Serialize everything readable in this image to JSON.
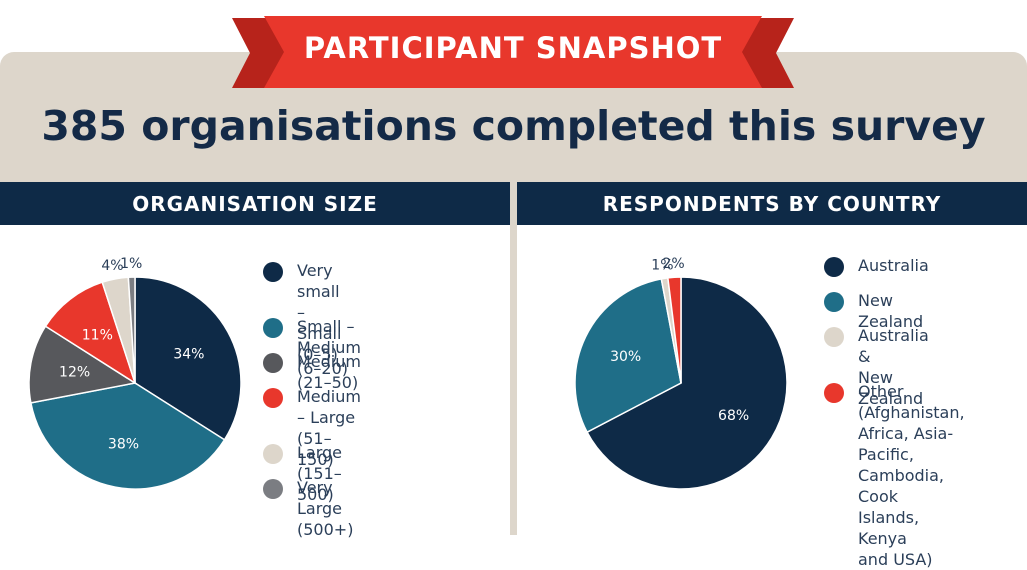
{
  "header": {
    "ribbon_title": "PARTICIPANT SNAPSHOT",
    "headline": "385 organisations completed this survey"
  },
  "colors": {
    "navy": "#0e2a47",
    "teal": "#1f6e88",
    "grey": "#57585c",
    "red": "#e8372c",
    "beige": "#ddd6cb",
    "light_grey": "#7b7d82"
  },
  "chart_data": [
    {
      "type": "pie",
      "title": "ORGANISATION SIZE",
      "slices": [
        {
          "label": "Very small – Small\n(0–5)",
          "value": 34,
          "display": "34%",
          "color": "#0e2a47"
        },
        {
          "label": "Small – Medium (6–20)",
          "value": 38,
          "display": "38%",
          "color": "#1f6e88"
        },
        {
          "label": "Medium (21–50)",
          "value": 12,
          "display": "12%",
          "color": "#57585c"
        },
        {
          "label": "Medium – Large\n(51–150)",
          "value": 11,
          "display": "11%",
          "color": "#e8372c"
        },
        {
          "label": "Large (151–500)",
          "value": 4,
          "display": "4%",
          "color": "#ddd6cb"
        },
        {
          "label": "Very Large (500+)",
          "value": 1,
          "display": "1%",
          "color": "#7b7d82"
        }
      ],
      "legend_placement": "right"
    },
    {
      "type": "pie",
      "title": "RESPONDENTS BY COUNTRY",
      "slices": [
        {
          "label": "Australia",
          "value": 68,
          "display": "68%",
          "color": "#0e2a47"
        },
        {
          "label": "New Zealand",
          "value": 30,
          "display": "30%",
          "color": "#1f6e88"
        },
        {
          "label": "Australia &\nNew Zealand",
          "value": 1,
          "display": "1%",
          "color": "#ddd6cb"
        },
        {
          "label": "Other\n(Afghanistan,\nAfrica, Asia-Pacific,\nCambodia, Cook\nIslands, Kenya\nand USA)",
          "value": 2,
          "display": "2%",
          "color": "#e8372c"
        }
      ],
      "legend_placement": "right"
    }
  ]
}
